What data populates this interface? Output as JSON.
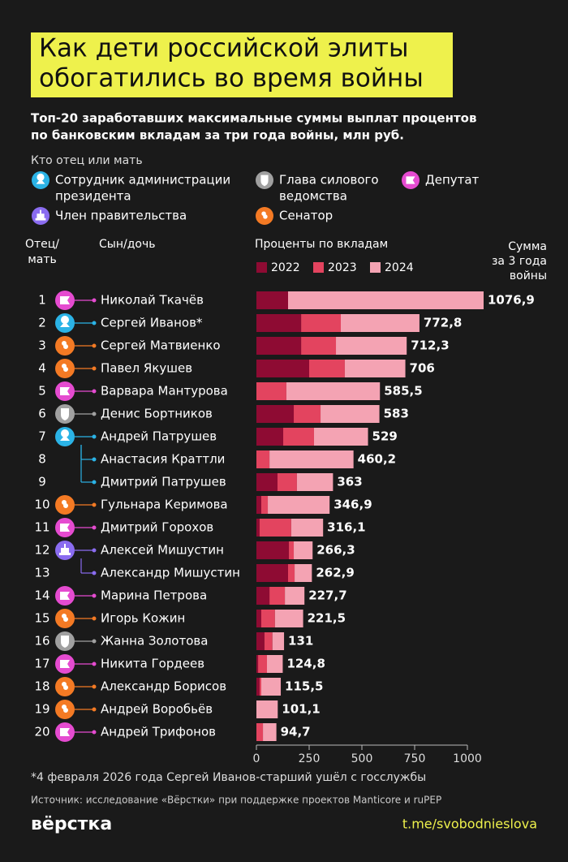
{
  "header": {
    "title_lines": [
      "Как дети российской элиты",
      "обогатились во время войны"
    ],
    "subtitle_lines": [
      "Топ-20 заработавших максимальные суммы выплат процентов",
      "по банковским вкладам за три года войны, млн руб."
    ],
    "legend_title": "Кто отец или мать",
    "parent_types": [
      {
        "name_lines": [
          "Сотрудник администрации",
          "президента"
        ],
        "color": "#2bb3e6"
      },
      {
        "name_lines": [
          "Глава силового",
          "ведомства"
        ],
        "color": "#a0a0a0"
      },
      {
        "name_lines": [
          "Депутат"
        ],
        "color": "#e54bd0"
      },
      {
        "name_lines": [
          "Член правительства"
        ],
        "color": "#8a6cf0"
      },
      {
        "name_lines": [
          "Сенатор"
        ],
        "color": "#f47a24"
      }
    ]
  },
  "columns": {
    "parent": [
      "Отец/",
      "мать"
    ],
    "child": "Сын/дочь",
    "bars": "Проценты по вкладам",
    "total": [
      "Сумма",
      "за 3 года",
      "войны"
    ]
  },
  "chart_data": {
    "type": "bar",
    "orientation": "horizontal",
    "stacked": true,
    "ranks": [
      1,
      2,
      3,
      4,
      5,
      6,
      7,
      8,
      9,
      10,
      11,
      12,
      13,
      14,
      15,
      16,
      17,
      18,
      19,
      20
    ],
    "categories": [
      "Николай Ткачёв",
      "Сергей Иванов*",
      "Сергей Матвиенко",
      "Павел Якушев",
      "Варвара Мантурова",
      "Денис Бортников",
      "Андрей Патрушев",
      "Анастасия Краттли",
      "Дмитрий Патрушев",
      "Гульнара Керимова",
      "Дмитрий Горохов",
      "Алексей Мишустин",
      "Александр Мишустин",
      "Марина Петрова",
      "Игорь Кожин",
      "Жанна Золотова",
      "Никита Гордеев",
      "Александр Борисов",
      "Андрей Воробьёв",
      "Андрей Трифонов"
    ],
    "parent_type": [
      2,
      0,
      4,
      4,
      2,
      1,
      0,
      null,
      null,
      4,
      2,
      3,
      null,
      2,
      4,
      1,
      2,
      4,
      4,
      2
    ],
    "series": [
      {
        "name": "2022",
        "color": "#8e0b33",
        "values": [
          150,
          212,
          212,
          250,
          0,
          177,
          127,
          0,
          100,
          23,
          15,
          154,
          150,
          62,
          23,
          38,
          8,
          15,
          0,
          0
        ]
      },
      {
        "name": "2023",
        "color": "#e3445f",
        "values": [
          0,
          188,
          165,
          169,
          142,
          127,
          146,
          62,
          92,
          31,
          150,
          23,
          31,
          73,
          65,
          38,
          42,
          8,
          0,
          31
        ]
      },
      {
        "name": "2024",
        "color": "#f4a3b3",
        "values": [
          926.9,
          372.8,
          335.3,
          287,
          443.5,
          279,
          256,
          398.2,
          171,
          292.9,
          151.1,
          89.3,
          81.9,
          92.7,
          133.5,
          55,
          74.8,
          92.5,
          101.1,
          63.7
        ]
      }
    ],
    "totals": [
      1076.9,
      772.8,
      712.3,
      706,
      585.5,
      583,
      529,
      460.2,
      363,
      346.9,
      316.1,
      266.3,
      262.9,
      227.7,
      221.5,
      131,
      124.8,
      115.5,
      101.1,
      94.7
    ],
    "total_labels": [
      "1076,9",
      "772,8",
      "712,3",
      "706",
      "585,5",
      "583",
      "529",
      "460,2",
      "363",
      "346,9",
      "316,1",
      "266,3",
      "262,9",
      "227,7",
      "221,5",
      "131",
      "124,8",
      "115,5",
      "101,1",
      "94,7"
    ],
    "xlim": [
      0,
      1000
    ],
    "xticks": [
      0,
      250,
      500,
      750,
      1000
    ]
  },
  "footer": {
    "note": "*4 февраля 2026 года Сергей Иванов-старший ушёл с госслужбы",
    "source": "Источник: исследование «Вёрстки» при поддержке проектов Manticore и ruPEP",
    "logo": "вёрстка",
    "link": "t.me/svobodnieslova"
  }
}
